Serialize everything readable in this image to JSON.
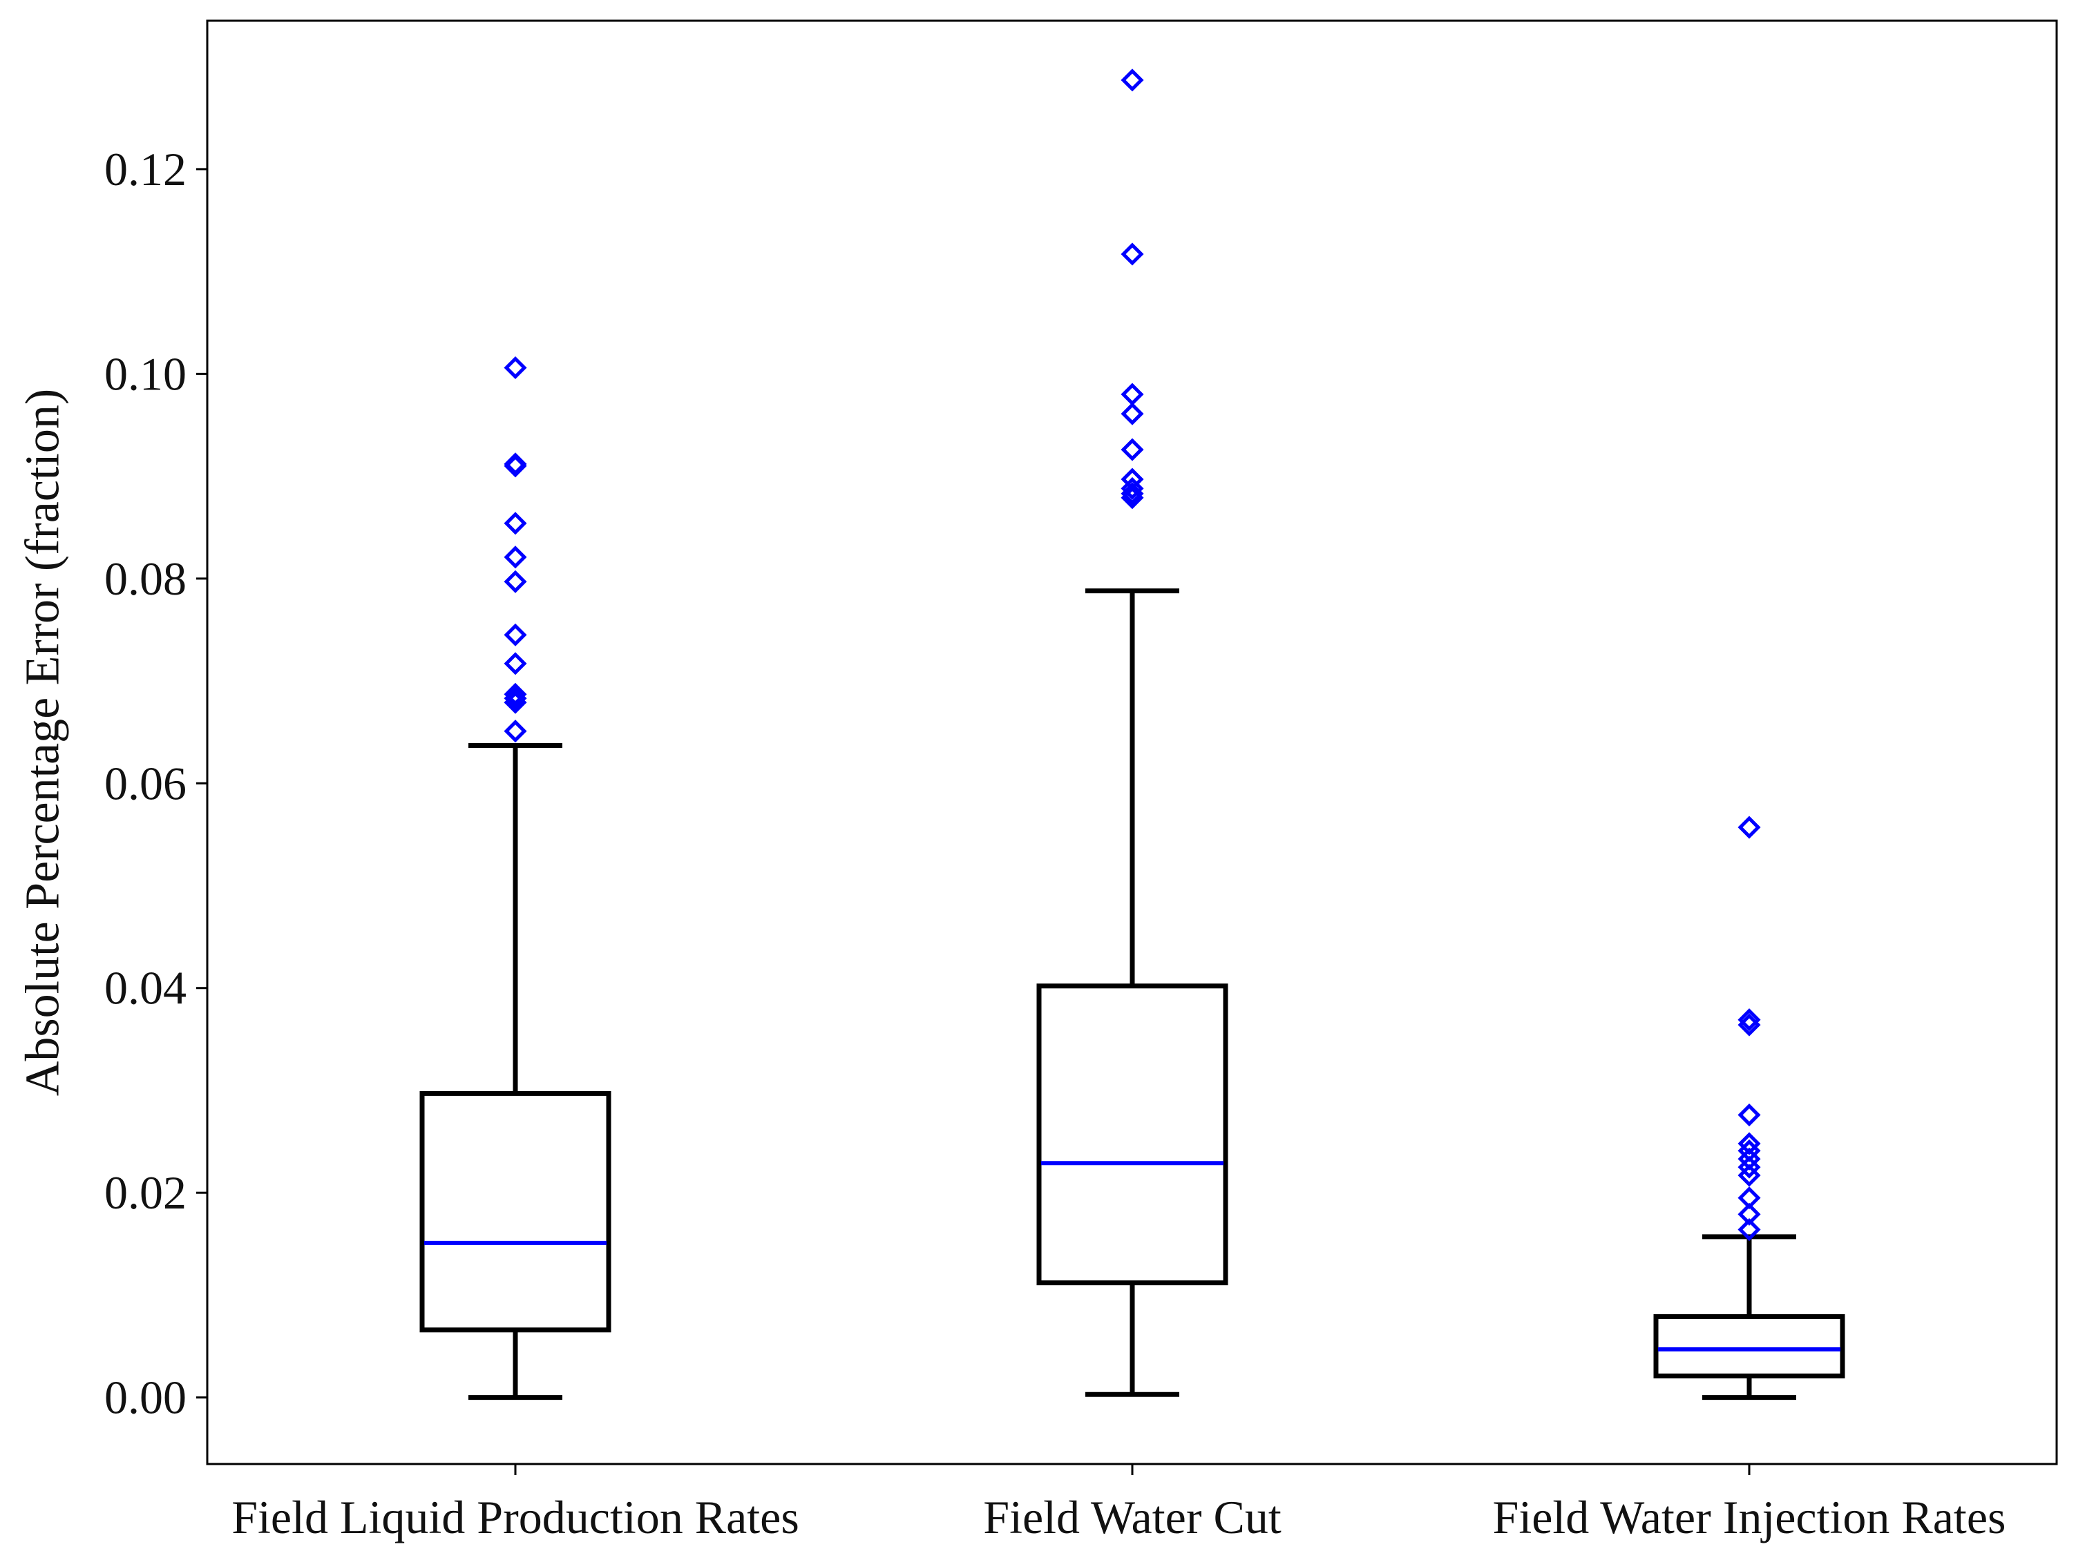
{
  "chart_data": {
    "type": "box",
    "title": "",
    "xlabel": "",
    "ylabel": "Absolute Percentage Error (fraction)",
    "ylim": [
      -0.0065,
      0.1345
    ],
    "yticks": [
      0.0,
      0.02,
      0.04,
      0.06,
      0.08,
      0.1,
      0.12
    ],
    "ytick_labels": [
      "0.00",
      "0.02",
      "0.04",
      "0.06",
      "0.08",
      "0.10",
      "0.12"
    ],
    "grid": false,
    "colors": {
      "box": "#000000",
      "median": "#0000ff",
      "outlier": "#0000ff"
    },
    "categories": [
      "Field Liquid Production Rates",
      "Field Water Cut",
      "Field Water Injection Rates"
    ],
    "boxes": [
      {
        "name": "Field Liquid Production Rates",
        "whisker_low": 0.0,
        "q1": 0.0066,
        "median": 0.0151,
        "q3": 0.0297,
        "whisker_high": 0.0637,
        "outliers": [
          0.1006,
          0.0912,
          0.091,
          0.0854,
          0.0821,
          0.0797,
          0.0745,
          0.0717,
          0.0687,
          0.0683,
          0.0679,
          0.0651
        ]
      },
      {
        "name": "Field Water Cut",
        "whisker_low": 0.0003,
        "q1": 0.0112,
        "median": 0.0229,
        "q3": 0.0402,
        "whisker_high": 0.0788,
        "outliers": [
          0.1287,
          0.1117,
          0.098,
          0.0961,
          0.0926,
          0.0897,
          0.0888,
          0.0883,
          0.0879
        ]
      },
      {
        "name": "Field Water Injection Rates",
        "whisker_low": 0.0,
        "q1": 0.0021,
        "median": 0.0047,
        "q3": 0.0079,
        "whisker_high": 0.0157,
        "outliers": [
          0.0557,
          0.0369,
          0.0364,
          0.0276,
          0.0248,
          0.0241,
          0.0233,
          0.0225,
          0.0217,
          0.0195,
          0.0179,
          0.0164
        ]
      }
    ]
  }
}
